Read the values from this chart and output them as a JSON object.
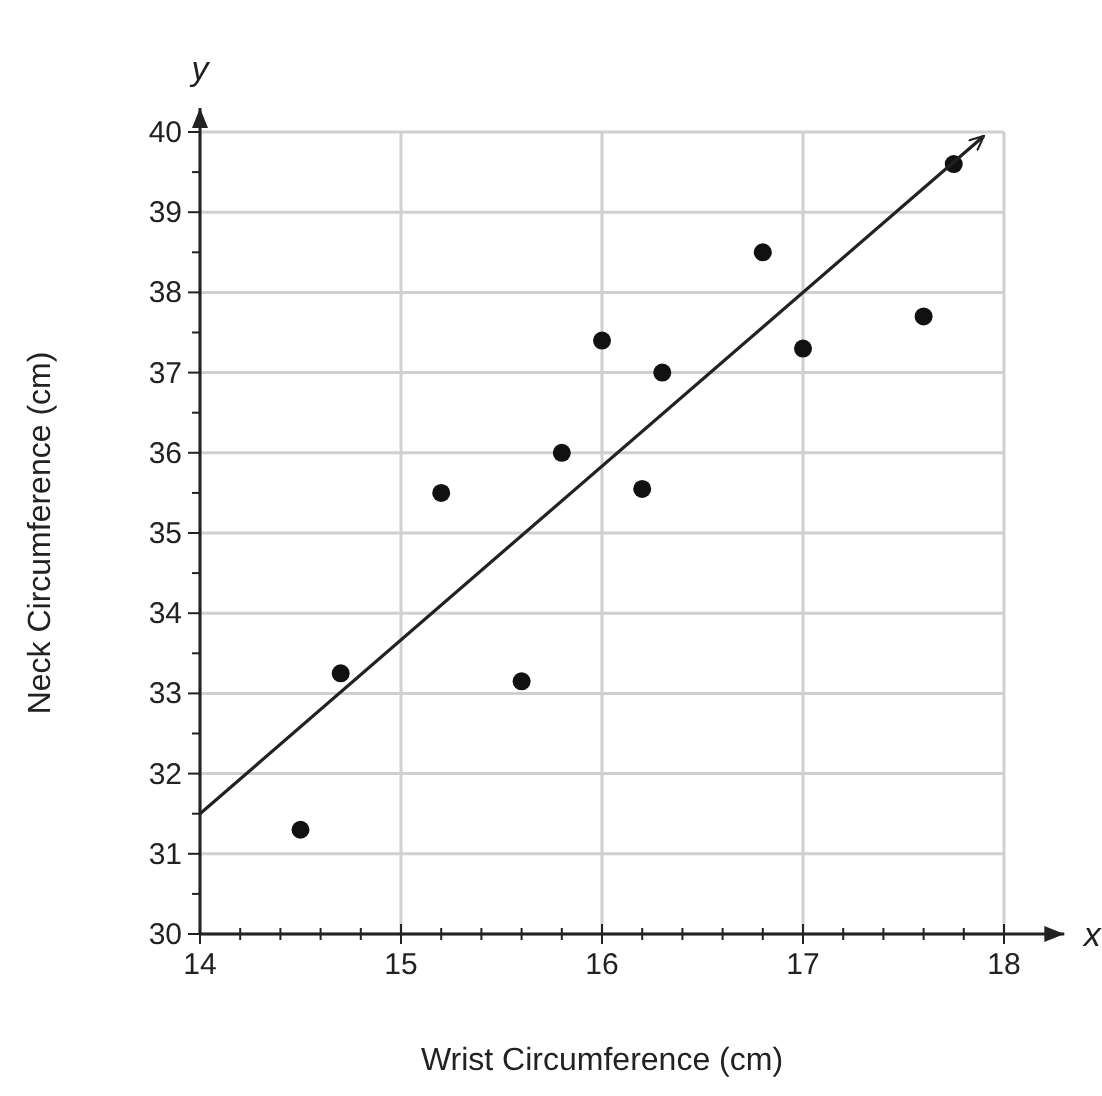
{
  "chart_data": {
    "type": "scatter",
    "xlabel": "Wrist Circumference (cm)",
    "ylabel": "Neck Circumference (cm)",
    "annotations": [
      "y",
      "x"
    ],
    "xlim": [
      14,
      18.3
    ],
    "ylim": [
      30,
      40.3
    ],
    "xticks": [
      14,
      {
        "value": 14.2,
        "label": null
      },
      {
        "value": 14.4,
        "label": null
      },
      {
        "value": 14.6,
        "label": null
      },
      {
        "value": 14.8,
        "label": null
      },
      15,
      {
        "value": 15.2,
        "label": null
      },
      {
        "value": 15.4,
        "label": null
      },
      {
        "value": 15.6,
        "label": null
      },
      {
        "value": 15.8,
        "label": null
      },
      16,
      {
        "value": 16.2,
        "label": null
      },
      {
        "value": 16.4,
        "label": null
      },
      {
        "value": 16.6,
        "label": null
      },
      {
        "value": 16.8,
        "label": null
      },
      17,
      {
        "value": 17.2,
        "label": null
      },
      {
        "value": 17.4,
        "label": null
      },
      {
        "value": 17.6,
        "label": null
      },
      {
        "value": 17.8,
        "label": null
      },
      18
    ],
    "yticks": [
      30,
      {
        "value": 30.5,
        "label": null
      },
      31,
      {
        "value": 31.5,
        "label": null
      },
      32,
      {
        "value": 32.5,
        "label": null
      },
      33,
      {
        "value": 33.5,
        "label": null
      },
      34,
      {
        "value": 34.5,
        "label": null
      },
      35,
      {
        "value": 35.5,
        "label": null
      },
      36,
      {
        "value": 36.5,
        "label": null
      },
      37,
      {
        "value": 37.5,
        "label": null
      },
      38,
      {
        "value": 38.5,
        "label": null
      },
      39,
      {
        "value": 39.5,
        "label": null
      },
      40
    ],
    "grid": true,
    "series": [
      {
        "marker": "circle",
        "color": "#111111",
        "x": [
          14.5,
          14.7,
          15.2,
          15.6,
          15.8,
          16.0,
          16.2,
          16.3,
          16.8,
          17.0,
          17.6,
          17.75
        ],
        "values": [
          31.3,
          33.25,
          35.5,
          33.15,
          36.0,
          37.4,
          35.55,
          37.0,
          38.5,
          37.3,
          37.7,
          39.6
        ]
      },
      {
        "type": "line",
        "marker": "none",
        "color": "#222222",
        "x": [
          14,
          17.9
        ],
        "values": [
          31.5,
          39.95
        ]
      }
    ]
  }
}
